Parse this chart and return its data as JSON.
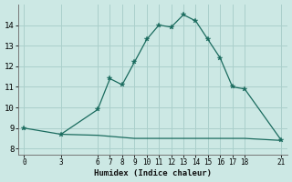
{
  "xlabel": "Humidex (Indice chaleur)",
  "bg_color": "#cce8e4",
  "grid_color": "#aacfcb",
  "line_color": "#1a6b5e",
  "curve_x": [
    0,
    3,
    6,
    7,
    8,
    9,
    10,
    11,
    12,
    13,
    14,
    15,
    16,
    17,
    18,
    21
  ],
  "curve_y": [
    9.0,
    8.7,
    9.9,
    11.4,
    11.1,
    12.2,
    13.3,
    14.0,
    13.9,
    14.5,
    14.2,
    13.3,
    12.4,
    11.0,
    10.9,
    8.4
  ],
  "baseline_x": [
    3,
    6,
    7,
    8,
    9,
    10,
    11,
    12,
    13,
    14,
    15,
    16,
    17,
    18,
    21
  ],
  "baseline_y": [
    8.7,
    8.65,
    8.6,
    8.55,
    8.5,
    8.5,
    8.5,
    8.5,
    8.5,
    8.5,
    8.5,
    8.5,
    8.5,
    8.5,
    8.4
  ],
  "xticks": [
    0,
    3,
    6,
    7,
    8,
    9,
    10,
    11,
    12,
    13,
    14,
    15,
    16,
    17,
    18,
    21
  ],
  "yticks": [
    8,
    9,
    10,
    11,
    12,
    13,
    14
  ],
  "xlim": [
    -0.5,
    21.5
  ],
  "ylim": [
    7.7,
    15.0
  ],
  "markersize": 4
}
